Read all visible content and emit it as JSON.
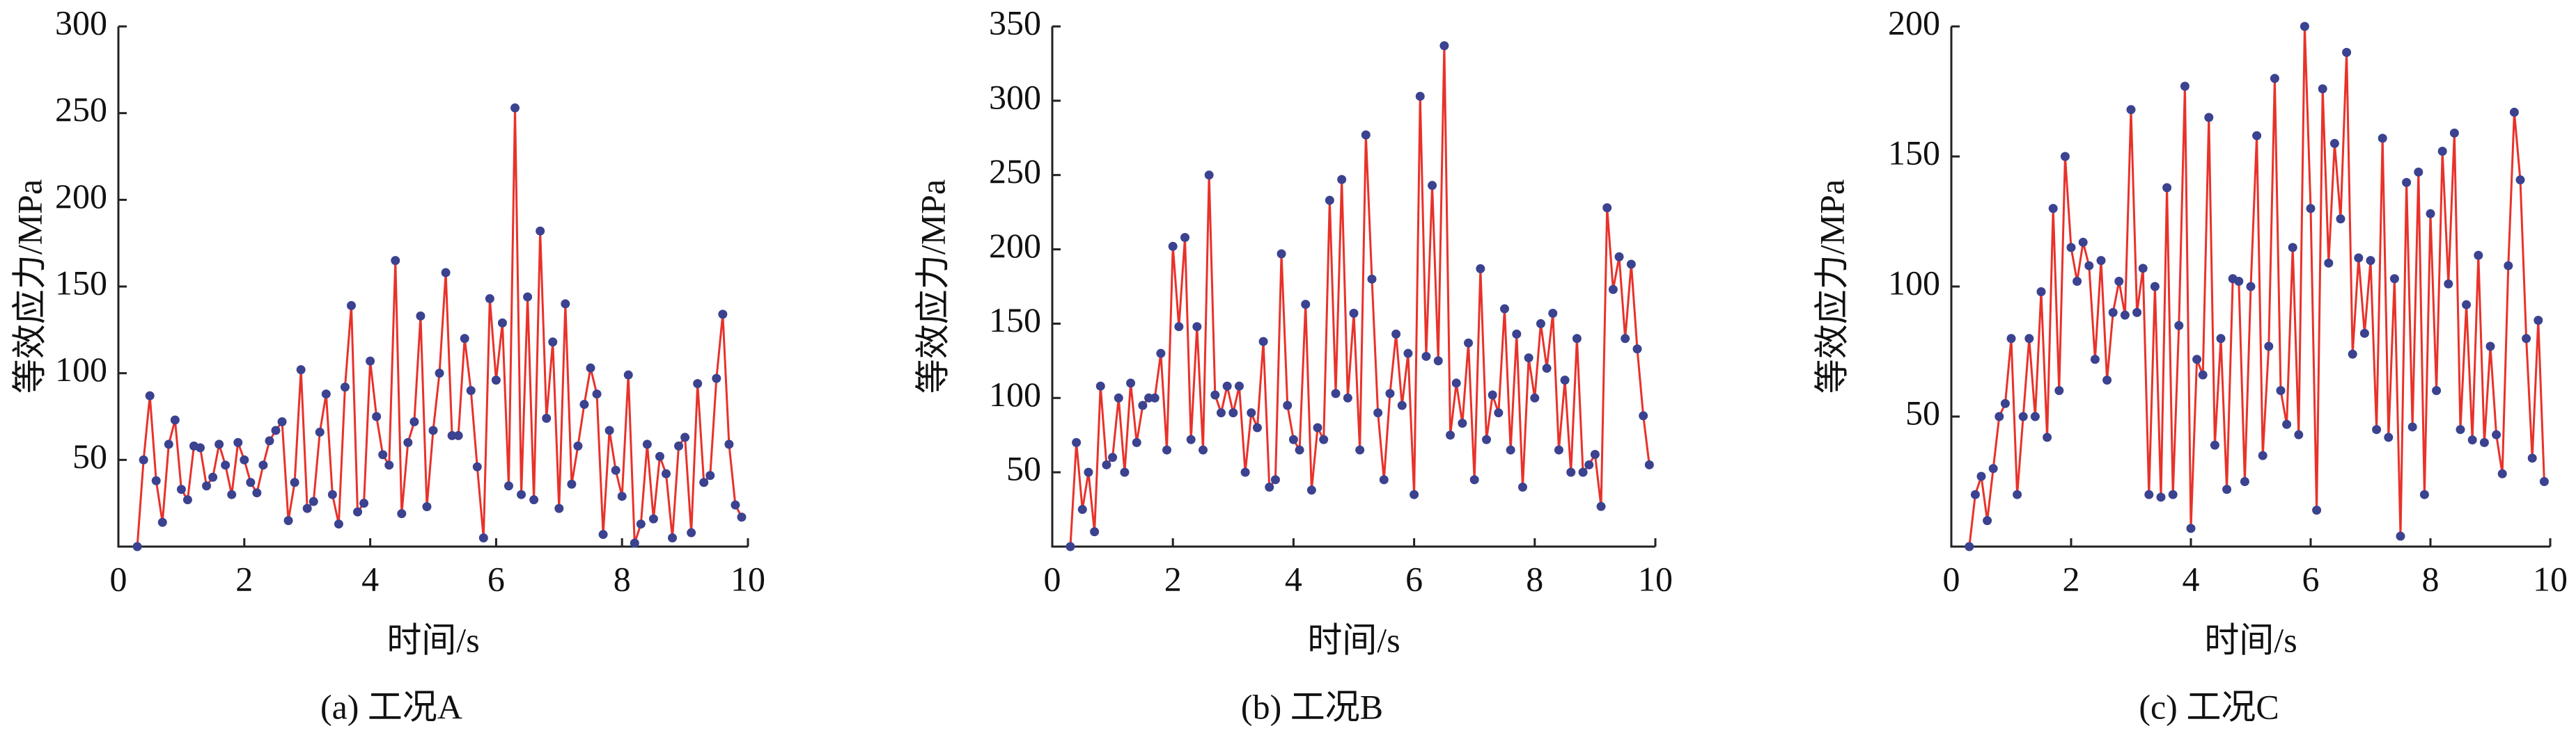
{
  "chart_data": [
    {
      "type": "line",
      "caption": "(a)  工况A",
      "xlabel": "时间/s",
      "ylabel": "等效应力/MPa",
      "color": "#e8322a",
      "marker_color": "#3b4290",
      "xlim": [
        0,
        10
      ],
      "xticks": [
        0,
        2,
        4,
        6,
        8,
        10
      ],
      "ylim": [
        0,
        300
      ],
      "yticks": [
        50,
        100,
        150,
        200,
        250,
        300
      ],
      "x": [
        0.3,
        0.4,
        0.5,
        0.6,
        0.7,
        0.8,
        0.9,
        1.0,
        1.1,
        1.2,
        1.3,
        1.4,
        1.5,
        1.6,
        1.7,
        1.8,
        1.9,
        2.0,
        2.1,
        2.2,
        2.3,
        2.4,
        2.5,
        2.6,
        2.7,
        2.8,
        2.9,
        3.0,
        3.1,
        3.2,
        3.3,
        3.4,
        3.5,
        3.6,
        3.7,
        3.8,
        3.9,
        4.0,
        4.1,
        4.2,
        4.3,
        4.4,
        4.5,
        4.6,
        4.7,
        4.8,
        4.9,
        5.0,
        5.1,
        5.2,
        5.3,
        5.4,
        5.5,
        5.6,
        5.7,
        5.8,
        5.9,
        6.0,
        6.1,
        6.2,
        6.3,
        6.4,
        6.5,
        6.6,
        6.7,
        6.8,
        6.9,
        7.0,
        7.1,
        7.2,
        7.3,
        7.4,
        7.5,
        7.6,
        7.7,
        7.8,
        7.9,
        8.0,
        8.1,
        8.2,
        8.3,
        8.4,
        8.5,
        8.6,
        8.7,
        8.8,
        8.9,
        9.0,
        9.1,
        9.2,
        9.3,
        9.4,
        9.5,
        9.6,
        9.7,
        9.8,
        9.9
      ],
      "values": [
        0,
        50,
        87,
        38,
        14,
        59,
        73,
        33,
        27,
        58,
        57,
        35,
        40,
        59,
        47,
        30,
        60,
        50,
        37,
        31,
        47,
        61,
        67,
        72,
        15,
        37,
        102,
        22,
        26,
        66,
        88,
        30,
        13,
        92,
        139,
        20,
        25,
        107,
        75,
        53,
        47,
        165,
        19,
        60,
        72,
        133,
        23,
        67,
        100,
        158,
        64,
        64,
        120,
        90,
        46,
        5,
        143,
        96,
        129,
        35,
        253,
        30,
        144,
        27,
        182,
        74,
        118,
        22,
        140,
        36,
        58,
        82,
        103,
        88,
        7,
        67,
        44,
        29,
        99,
        2,
        13,
        59,
        16,
        52,
        42,
        5,
        58,
        63,
        8,
        94,
        37,
        41,
        97,
        134,
        59,
        24,
        17
      ]
    },
    {
      "type": "line",
      "caption": "(b)  工况B",
      "xlabel": "时间/s",
      "ylabel": "等效应力/MPa",
      "color": "#e8322a",
      "marker_color": "#3b4290",
      "xlim": [
        0,
        10
      ],
      "xticks": [
        0,
        2,
        4,
        6,
        8,
        10
      ],
      "ylim": [
        0,
        350
      ],
      "yticks": [
        50,
        100,
        150,
        200,
        250,
        300,
        350
      ],
      "x": [
        0.3,
        0.4,
        0.5,
        0.6,
        0.7,
        0.8,
        0.9,
        1.0,
        1.1,
        1.2,
        1.3,
        1.4,
        1.5,
        1.6,
        1.7,
        1.8,
        1.9,
        2.0,
        2.1,
        2.2,
        2.3,
        2.4,
        2.5,
        2.6,
        2.7,
        2.8,
        2.9,
        3.0,
        3.1,
        3.2,
        3.3,
        3.4,
        3.5,
        3.6,
        3.7,
        3.8,
        3.9,
        4.0,
        4.1,
        4.2,
        4.3,
        4.4,
        4.5,
        4.6,
        4.7,
        4.8,
        4.9,
        5.0,
        5.1,
        5.2,
        5.3,
        5.4,
        5.5,
        5.6,
        5.7,
        5.8,
        5.9,
        6.0,
        6.1,
        6.2,
        6.3,
        6.4,
        6.5,
        6.6,
        6.7,
        6.8,
        6.9,
        7.0,
        7.1,
        7.2,
        7.3,
        7.4,
        7.5,
        7.6,
        7.7,
        7.8,
        7.9,
        8.0,
        8.1,
        8.2,
        8.3,
        8.4,
        8.5,
        8.6,
        8.7,
        8.8,
        8.9,
        9.0,
        9.1,
        9.2,
        9.3,
        9.4,
        9.5,
        9.6,
        9.7,
        9.8,
        9.9
      ],
      "values": [
        0,
        70,
        25,
        50,
        10,
        108,
        55,
        60,
        100,
        50,
        110,
        70,
        95,
        100,
        100,
        130,
        65,
        202,
        148,
        208,
        72,
        148,
        65,
        250,
        102,
        90,
        108,
        90,
        108,
        50,
        90,
        80,
        138,
        40,
        45,
        197,
        95,
        72,
        65,
        163,
        38,
        80,
        72,
        233,
        103,
        247,
        100,
        157,
        65,
        277,
        180,
        90,
        45,
        103,
        143,
        95,
        130,
        35,
        303,
        128,
        243,
        125,
        337,
        75,
        110,
        83,
        137,
        45,
        187,
        72,
        102,
        90,
        160,
        65,
        143,
        40,
        127,
        100,
        150,
        120,
        157,
        65,
        112,
        50,
        140,
        50,
        55,
        62,
        27,
        228,
        173,
        195,
        140,
        190,
        133,
        88,
        55
      ]
    },
    {
      "type": "line",
      "caption": "(c)  工况C",
      "xlabel": "时间/s",
      "ylabel": "等效应力/MPa",
      "color": "#e8322a",
      "marker_color": "#3b4290",
      "xlim": [
        0,
        10
      ],
      "xticks": [
        0,
        2,
        4,
        6,
        8,
        10
      ],
      "ylim": [
        0,
        200
      ],
      "yticks": [
        50,
        100,
        150,
        200
      ],
      "x": [
        0.3,
        0.4,
        0.5,
        0.6,
        0.7,
        0.8,
        0.9,
        1.0,
        1.1,
        1.2,
        1.3,
        1.4,
        1.5,
        1.6,
        1.7,
        1.8,
        1.9,
        2.0,
        2.1,
        2.2,
        2.3,
        2.4,
        2.5,
        2.6,
        2.7,
        2.8,
        2.9,
        3.0,
        3.1,
        3.2,
        3.3,
        3.4,
        3.5,
        3.6,
        3.7,
        3.8,
        3.9,
        4.0,
        4.1,
        4.2,
        4.3,
        4.4,
        4.5,
        4.6,
        4.7,
        4.8,
        4.9,
        5.0,
        5.1,
        5.2,
        5.3,
        5.4,
        5.5,
        5.6,
        5.7,
        5.8,
        5.9,
        6.0,
        6.1,
        6.2,
        6.3,
        6.4,
        6.5,
        6.6,
        6.7,
        6.8,
        6.9,
        7.0,
        7.1,
        7.2,
        7.3,
        7.4,
        7.5,
        7.6,
        7.7,
        7.8,
        7.9,
        8.0,
        8.1,
        8.2,
        8.3,
        8.4,
        8.5,
        8.6,
        8.7,
        8.8,
        8.9,
        9.0,
        9.1,
        9.2,
        9.3,
        9.4,
        9.5,
        9.6,
        9.7,
        9.8,
        9.9
      ],
      "values": [
        0,
        20,
        27,
        10,
        30,
        50,
        55,
        80,
        20,
        50,
        80,
        50,
        98,
        42,
        130,
        60,
        150,
        115,
        102,
        117,
        108,
        72,
        110,
        64,
        90,
        102,
        89,
        168,
        90,
        107,
        20,
        100,
        19,
        138,
        20,
        85,
        177,
        7,
        72,
        66,
        165,
        39,
        80,
        22,
        103,
        102,
        25,
        100,
        158,
        35,
        77,
        180,
        60,
        47,
        115,
        43,
        200,
        130,
        14,
        176,
        109,
        155,
        126,
        190,
        74,
        111,
        82,
        110,
        45,
        157,
        42,
        103,
        4,
        140,
        46,
        144,
        20,
        128,
        60,
        152,
        101,
        159,
        45,
        93,
        41,
        112,
        40,
        77,
        43,
        28,
        108,
        167,
        141,
        80,
        34,
        87,
        25
      ]
    }
  ]
}
